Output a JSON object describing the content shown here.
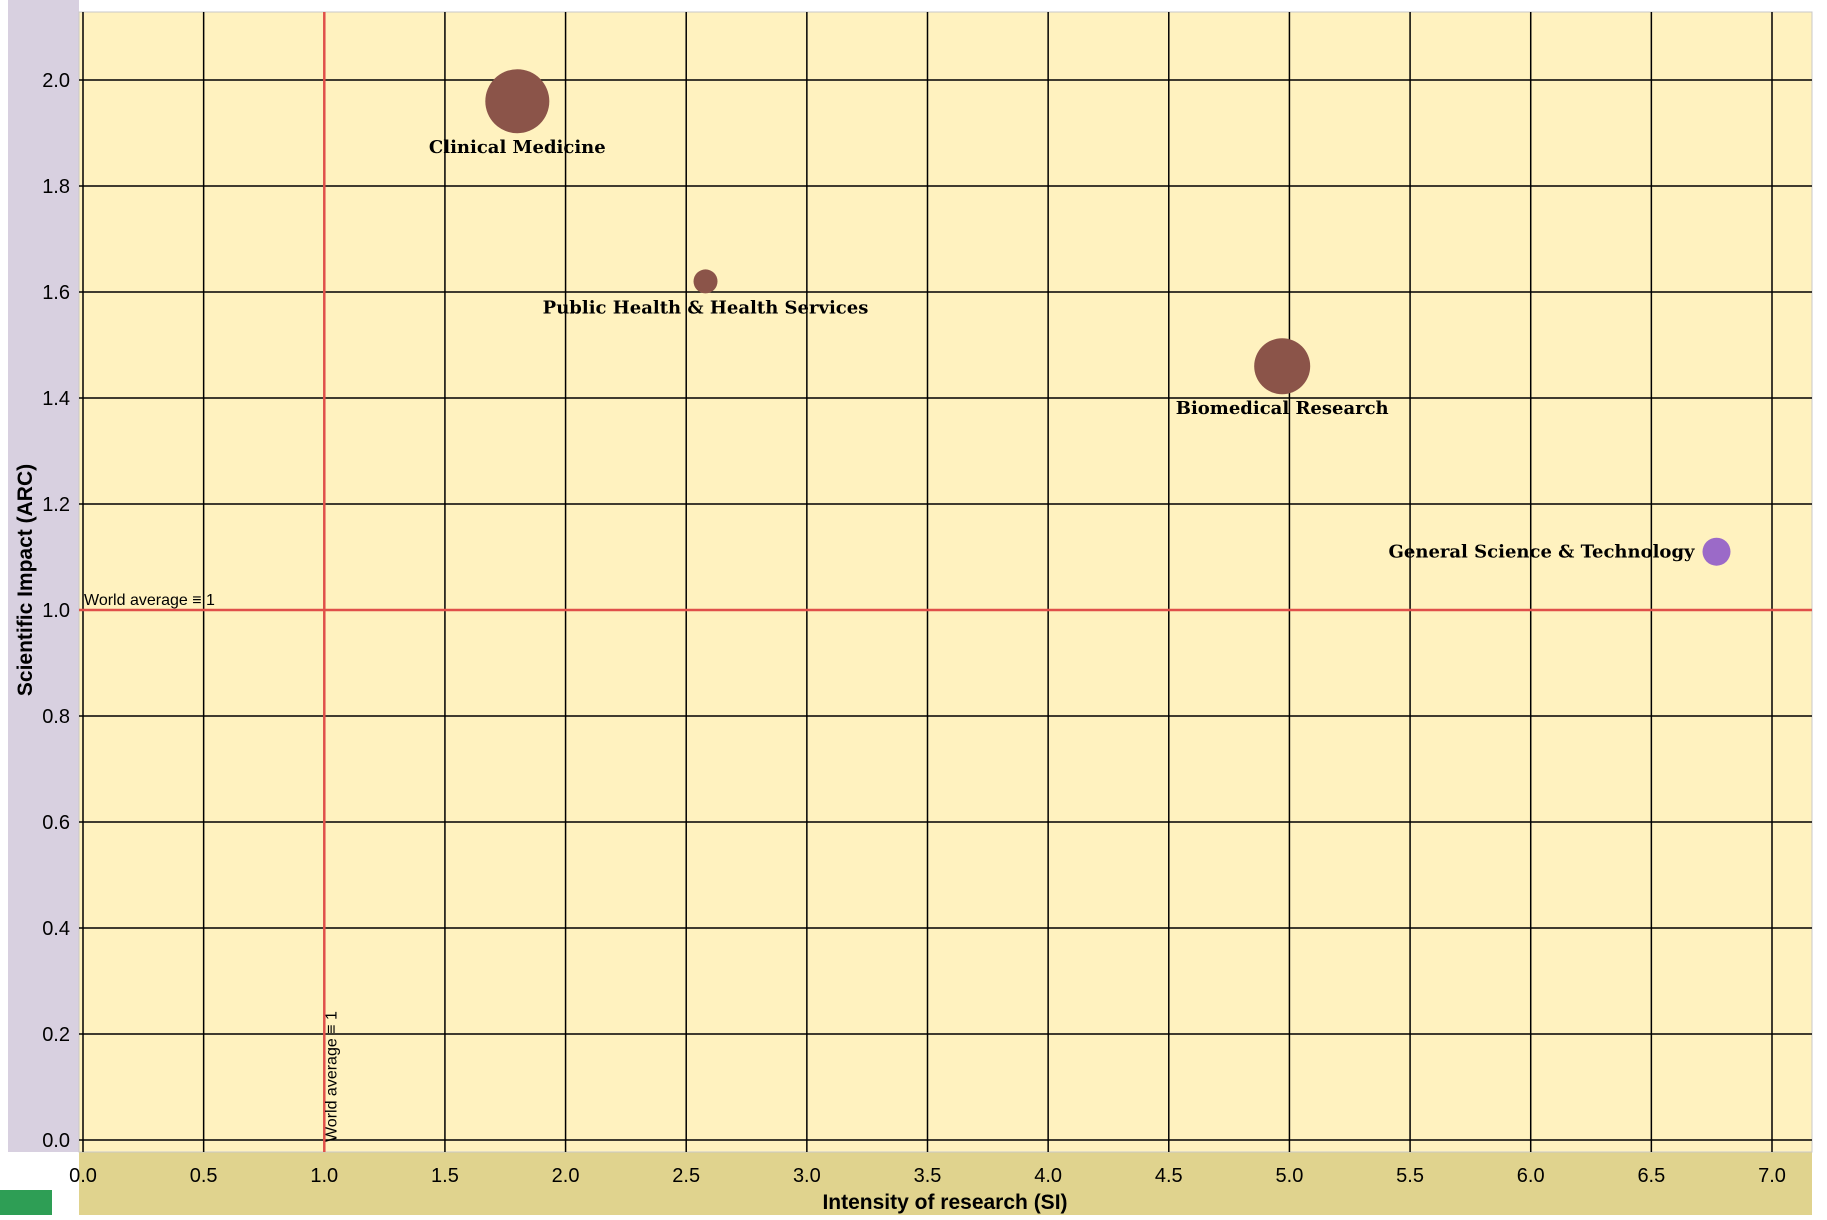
{
  "chart_data": {
    "type": "scatter",
    "xlabel": "Intensity of research (SI)",
    "ylabel": "Scientific Impact (ARC)",
    "xlim": [
      0.0,
      7.0
    ],
    "ylim": [
      0.0,
      2.0
    ],
    "x_ticks": [
      "0.0",
      "0.5",
      "1.0",
      "1.5",
      "2.0",
      "2.5",
      "3.0",
      "3.5",
      "4.0",
      "4.5",
      "5.0",
      "5.5",
      "6.0",
      "6.5",
      "7.0"
    ],
    "y_ticks": [
      "0.0",
      "0.2",
      "0.4",
      "0.6",
      "0.8",
      "1.0",
      "1.2",
      "1.4",
      "1.6",
      "1.8",
      "2.0"
    ],
    "grid": true,
    "reference_lines": [
      {
        "axis": "y",
        "value": 1.0,
        "label": "World average ≡ 1",
        "color": "#e0504a"
      },
      {
        "axis": "x",
        "value": 1.0,
        "label": "World average ≡ 1",
        "color": "#e0504a"
      }
    ],
    "points": [
      {
        "label": "Clinical Medicine",
        "x": 1.8,
        "y": 1.96,
        "size": 32,
        "color": "#8b5449",
        "label_pos": "below"
      },
      {
        "label": "Public Health & Health Services",
        "x": 2.58,
        "y": 1.62,
        "size": 12,
        "color": "#8b5449",
        "label_pos": "below"
      },
      {
        "label": "Biomedical Research",
        "x": 4.97,
        "y": 1.46,
        "size": 28,
        "color": "#8b5449",
        "label_pos": "below"
      },
      {
        "label": "General Science & Technology",
        "x": 6.77,
        "y": 1.11,
        "size": 14,
        "color": "#9b6ac8",
        "label_pos": "left"
      }
    ],
    "colors": {
      "plot_background": "#fff2bf",
      "y_axis_band": "#d8d0e0",
      "x_axis_band": "#e0d38e",
      "grid": "#000000",
      "badge": "#2e9e55"
    }
  }
}
